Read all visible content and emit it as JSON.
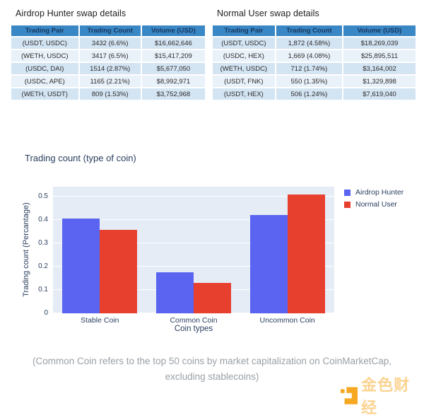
{
  "tables": [
    {
      "title": "Airdrop Hunter swap details",
      "headers": [
        "Trading Pair",
        "Trading Count",
        "Volume (USD)"
      ],
      "rows": [
        [
          "(USDT, USDC)",
          "3432 (6.6%)",
          "$16,662,646"
        ],
        [
          "(WETH, USDC)",
          "3417 (6.5%)",
          "$15,417,209"
        ],
        [
          "(USDC, DAI)",
          "1514 (2.87%)",
          "$5,677,050"
        ],
        [
          "(USDC, APE)",
          "1165 (2.21%)",
          "$8,992,971"
        ],
        [
          "(WETH, USDT)",
          "809 (1.53%)",
          "$3,752,968"
        ]
      ]
    },
    {
      "title": "Normal User swap details",
      "headers": [
        "Trading Pair",
        "Trading Count",
        "Volume (USD)"
      ],
      "rows": [
        [
          "(USDT, USDC)",
          "1,872 (4.58%)",
          "$18,269,039"
        ],
        [
          "(USDC, HEX)",
          "1,669 (4.08%)",
          "$25,895,511"
        ],
        [
          "(WETH, USDC)",
          "712 (1.74%)",
          "$3,164,002"
        ],
        [
          "(USDT, FNK)",
          "550 (1.35%)",
          "$1,329,898"
        ],
        [
          "(USDT, HEX)",
          "506 (1.24%)",
          "$7,619,040"
        ]
      ]
    }
  ],
  "chart_data": {
    "type": "bar",
    "title": "Trading count (type of coin)",
    "categories": [
      "Stable Coin",
      "Common Coin",
      "Uncommon Coin"
    ],
    "series": [
      {
        "name": "Airdrop Hunter",
        "color": "#5a64f0",
        "values": [
          0.405,
          0.175,
          0.42
        ]
      },
      {
        "name": "Normal User",
        "color": "#e8402e",
        "values": [
          0.357,
          0.13,
          0.51
        ]
      }
    ],
    "xlabel": "Coin types",
    "ylabel": "Trading count (Percantage)",
    "ylim": [
      0,
      0.542
    ],
    "yticks": [
      0,
      0.1,
      0.2,
      0.3,
      0.4,
      0.5
    ],
    "grid": true,
    "legend_position": "outside-top-right",
    "plot_bg": "#e5ecf6"
  },
  "caption": {
    "line1": "(Common Coin refers to the top 50 coins by market capitalization on CoinMarketCap,",
    "line2": "excluding stablecoins)"
  },
  "watermark": {
    "text": "金色财经",
    "logo": "golden-finance-logo",
    "color": "#f7a823"
  },
  "theme": {
    "table_header_bg": "#3a87c6",
    "table_header_text": "#17375d",
    "table_row_dark": "#d3e4f3",
    "table_row_light": "#e9f1f9",
    "plot_bg": "#e5ecf6",
    "axis_text": "#2a3f5f",
    "caption_text": "#9aa0a6"
  }
}
